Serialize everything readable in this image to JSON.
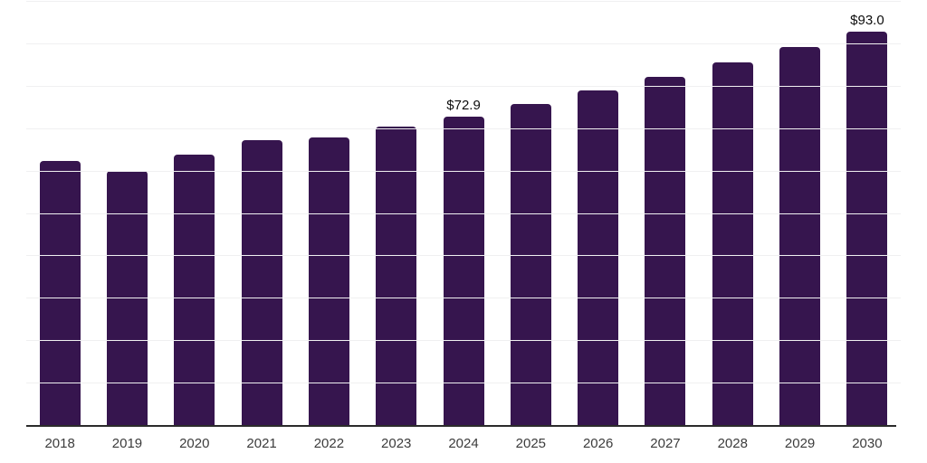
{
  "chart_data": {
    "type": "bar",
    "title": "",
    "xlabel": "",
    "ylabel": "",
    "categories": [
      "2018",
      "2019",
      "2020",
      "2021",
      "2022",
      "2023",
      "2024",
      "2025",
      "2026",
      "2027",
      "2028",
      "2029",
      "2030"
    ],
    "values": [
      62.4,
      60.2,
      64.0,
      67.3,
      68.0,
      70.5,
      72.9,
      75.9,
      79.1,
      82.3,
      85.7,
      89.3,
      93.0
    ],
    "data_labels": [
      "",
      "",
      "",
      "",
      "",
      "",
      "$72.9",
      "",
      "",
      "",
      "",
      "",
      "$93.0"
    ],
    "ylim": [
      0,
      100
    ],
    "grid_step": 10,
    "grid": true,
    "legend": false,
    "colors": {
      "bar": "#36154e",
      "gridline": "#f0f0f1",
      "axis_line": "#2b2b2b",
      "tick_label": "#3c3c3c",
      "data_label": "#0d0d0d",
      "background": "#ffffff"
    }
  }
}
